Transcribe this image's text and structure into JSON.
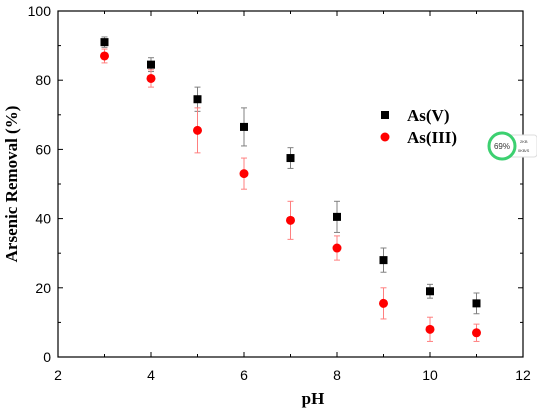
{
  "chart_data": {
    "type": "scatter",
    "xlabel": "pH",
    "ylabel": "Arsenic Removal (%)",
    "xlim": [
      2,
      12
    ],
    "ylim": [
      0,
      100
    ],
    "xticks": [
      2,
      4,
      6,
      8,
      10,
      12
    ],
    "yticks": [
      0,
      20,
      40,
      60,
      80,
      100
    ],
    "legend_position": "right-center",
    "grid": false,
    "series": [
      {
        "name": "As(V)",
        "marker": "square",
        "color": "#000000",
        "error_color": "#808080",
        "x": [
          3,
          4,
          5,
          6,
          7,
          8,
          9,
          10,
          11
        ],
        "y": [
          91,
          84.5,
          74.5,
          66.5,
          57.5,
          40.5,
          28,
          19,
          15.5
        ],
        "error": [
          1.5,
          2,
          3.5,
          5.5,
          3,
          4.5,
          3.5,
          2,
          3
        ]
      },
      {
        "name": "As(III)",
        "marker": "circle",
        "color": "#ff0000",
        "error_color": "#ff7f7f",
        "x": [
          3,
          4,
          5,
          6,
          7,
          8,
          9,
          10,
          11
        ],
        "y": [
          87,
          80.5,
          65.5,
          53,
          39.5,
          31.5,
          15.5,
          8,
          7
        ],
        "error": [
          2,
          2.5,
          6.5,
          4.5,
          5.5,
          3.5,
          4.5,
          3.5,
          2.5
        ]
      }
    ]
  },
  "overlay_widget": {
    "percent": "69%",
    "line1": "2KB",
    "line2": "0KB/S"
  }
}
